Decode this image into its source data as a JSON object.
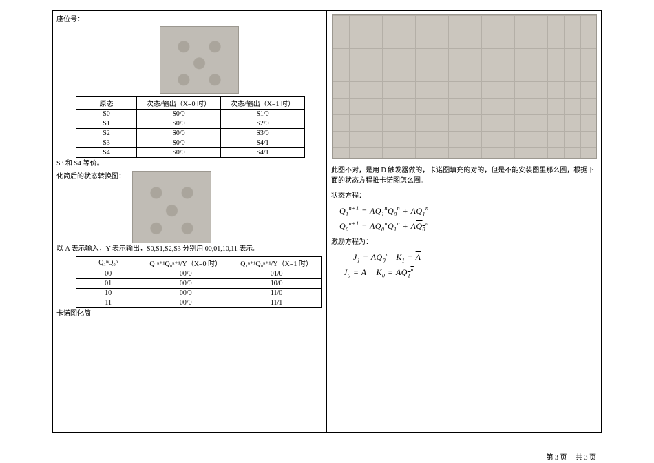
{
  "header": {
    "seat_label": "座位号："
  },
  "left": {
    "table1": {
      "headers": [
        "原态",
        "次态/输出（X=0 时）",
        "次态/输出（X=1 时）"
      ],
      "rows": [
        [
          "S0",
          "S0/0",
          "S1/0"
        ],
        [
          "S1",
          "S0/0",
          "S2/0"
        ],
        [
          "S2",
          "S0/0",
          "S3/0"
        ],
        [
          "S3",
          "S0/0",
          "S4/1"
        ],
        [
          "S4",
          "S0/0",
          "S4/1"
        ]
      ]
    },
    "equiv_text": "S3 和 S4 等价。",
    "simplified_intro": "化简后的状态转换图：",
    "encoding_text": "以 A 表示输入，Y 表示输出，S0,S1,S2,S3 分别用 00,01,10,11 表示。",
    "table2": {
      "headers": [
        "Q₁ⁿQ₀ⁿ",
        "Q₁ⁿ⁺¹Q₀ⁿ⁺¹/Y（X=0 时）",
        "Q₁ⁿ⁺¹Q₀ⁿ⁺¹/Y（X=1 时）"
      ],
      "rows": [
        [
          "00",
          "00/0",
          "01/0"
        ],
        [
          "01",
          "00/0",
          "10/0"
        ],
        [
          "10",
          "00/0",
          "11/0"
        ],
        [
          "11",
          "00/0",
          "11/1"
        ]
      ]
    },
    "kmap_label": "卡诺图化简"
  },
  "right": {
    "paragraph": "此图不对，是用 D 触发器做的，卡诺图填充的对的，但是不能安装图里那么圈，根据下面的状态方程推卡诺图怎么圈。",
    "state_eq_label": "状态方程：",
    "excitation_label": "激励方程为：",
    "eq1_html": "Q<sub>1</sub><sup>n+1</sup> = AQ<sub>1</sub><sup>n</sup>Q<sub>0</sub><sup>n</sup> + AQ<sub>1</sub><sup>n</sup>",
    "eq2_html": "Q<sub>0</sub><sup>n+1</sup> = AQ<sub>0</sub><sup>n</sup>Q<sub>1</sub><sup>n</sup> + A<span class=\"overbar\">Q<sub>0</sub><sup>n</sup></span>",
    "eq3_html": "J<sub>1</sub> = AQ<sub>0</sub><sup>n</sup>&nbsp;&nbsp;&nbsp;K<sub>1</sub> = <span class=\"overbar\">A</span>",
    "eq4_html": "J<sub>0</sub> = A&nbsp;&nbsp;&nbsp;&nbsp;K<sub>0</sub> = <span class=\"overbar\">AQ<sub>1</sub><sup>n</sup></span>"
  },
  "footer": {
    "page_current_label": "第 3 页",
    "page_total_label": "共 3 页"
  }
}
